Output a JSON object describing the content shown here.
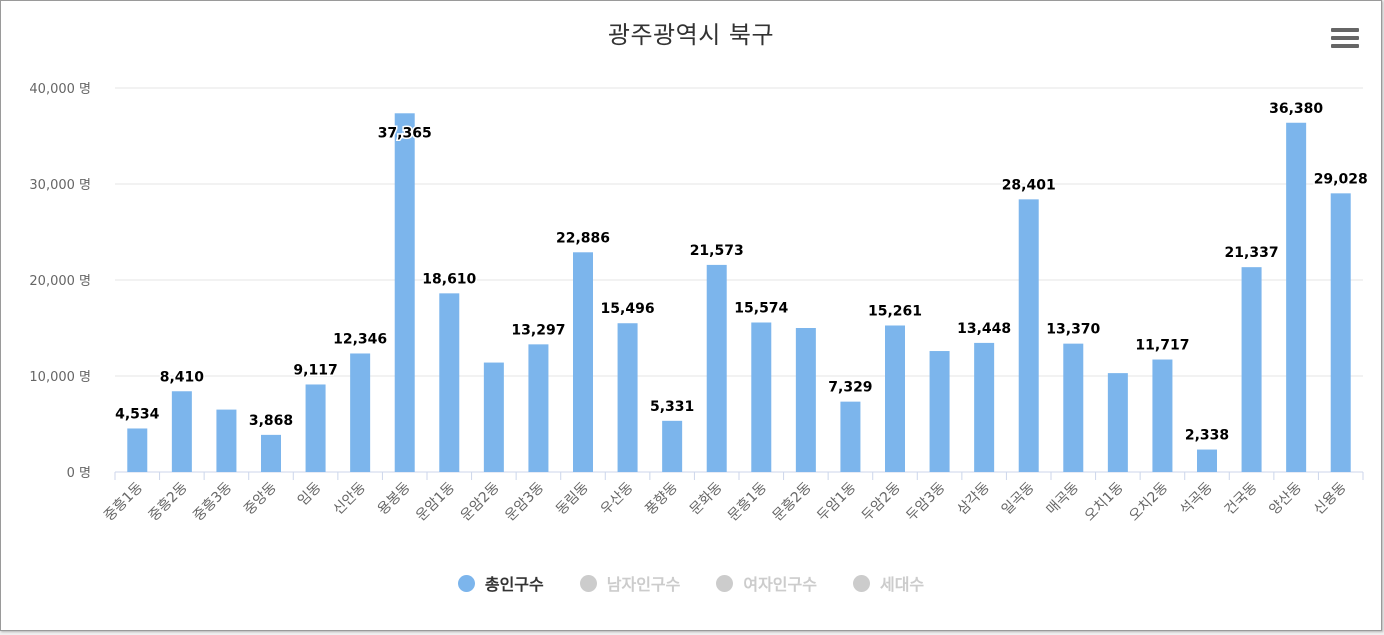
{
  "chart_data": {
    "type": "bar",
    "title": "광주광역시 북구",
    "categories": [
      "중흥1동",
      "중흥2동",
      "중흥3동",
      "중앙동",
      "임동",
      "신안동",
      "용봉동",
      "운암1동",
      "운암2동",
      "운암3동",
      "동림동",
      "우산동",
      "풍향동",
      "문화동",
      "문흥1동",
      "문흥2동",
      "두암1동",
      "두암2동",
      "두암3동",
      "삼각동",
      "일곡동",
      "매곡동",
      "오치1동",
      "오치2동",
      "석곡동",
      "건국동",
      "양산동",
      "신용동"
    ],
    "series": [
      {
        "name": "총인구수",
        "color": "#7cb5ec",
        "values": [
          4534,
          8410,
          6500,
          3868,
          9117,
          12346,
          37365,
          18610,
          11400,
          13297,
          22886,
          15496,
          5331,
          21573,
          15574,
          15000,
          7329,
          15261,
          12600,
          13448,
          28401,
          13370,
          10300,
          11717,
          2338,
          21337,
          36380,
          29028
        ],
        "labels": [
          "4,534",
          "8,410",
          "",
          "3,868",
          "9,117",
          "12,346",
          "37,365",
          "18,610",
          "",
          "13,297",
          "22,886",
          "15,496",
          "5,331",
          "21,573",
          "15,574",
          "",
          "7,329",
          "15,261",
          "",
          "13,448",
          "28,401",
          "13,370",
          "",
          "11,717",
          "2,338",
          "21,337",
          "36,380",
          "29,028"
        ]
      }
    ],
    "legend": [
      {
        "name": "총인구수",
        "active": true,
        "color": "#7cb5ec"
      },
      {
        "name": "남자인구수",
        "active": false,
        "color": "#cccccc"
      },
      {
        "name": "여자인구수",
        "active": false,
        "color": "#cccccc"
      },
      {
        "name": "세대수",
        "active": false,
        "color": "#cccccc"
      }
    ],
    "ylim": [
      0,
      40000
    ],
    "yticks": [
      "0 명",
      "10,000 명",
      "20,000 명",
      "30,000 명",
      "40,000 명"
    ],
    "xlabel": "",
    "ylabel": "",
    "grid": true,
    "legend_position": "bottom"
  },
  "menu_icon": "hamburger-menu-icon"
}
